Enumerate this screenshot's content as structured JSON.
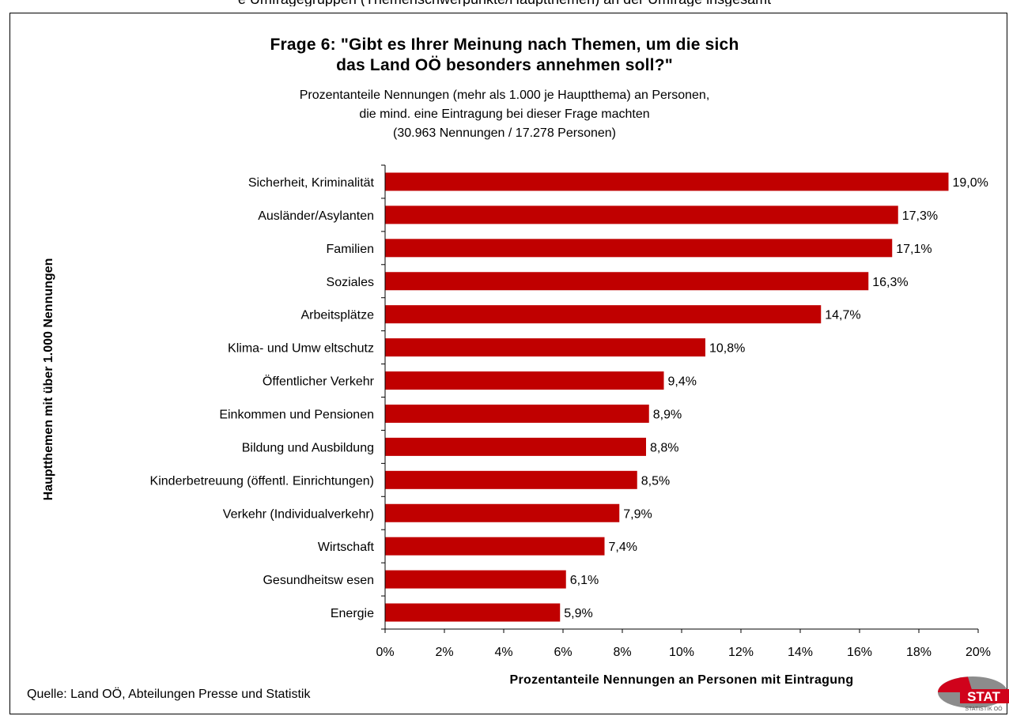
{
  "header_partial": "e Umfragegruppen (Themenschwerpunkte/Hauptthemen) an der Umfrage insgesamt",
  "chart_data": {
    "type": "bar",
    "orientation": "horizontal",
    "title_lines": [
      "Frage 6: \"Gibt es Ihrer Meinung nach Themen, um die sich",
      "das Land OÖ besonders annehmen soll?\""
    ],
    "subtitle_lines": [
      "Prozentanteile Nennungen (mehr als 1.000 je Hauptthema) an Personen,",
      "die mind. eine Eintragung bei dieser Frage machten",
      "(30.963 Nennungen / 17.278 Personen)"
    ],
    "categories": [
      "Sicherheit, Kriminalität",
      "Ausländer/Asylanten",
      "Familien",
      "Soziales",
      "Arbeitsplätze",
      "Klima- und Umw eltschutz",
      "Öffentlicher Verkehr",
      "Einkommen und Pensionen",
      "Bildung und Ausbildung",
      "Kinderbetreuung (öffentl. Einrichtungen)",
      "Verkehr (Individualverkehr)",
      "Wirtschaft",
      "Gesundheitsw esen",
      "Energie"
    ],
    "values": [
      19.0,
      17.3,
      17.1,
      16.3,
      14.7,
      10.8,
      9.4,
      8.9,
      8.8,
      8.5,
      7.9,
      7.4,
      6.1,
      5.9
    ],
    "value_labels": [
      "19,0%",
      "17,3%",
      "17,1%",
      "16,3%",
      "14,7%",
      "10,8%",
      "9,4%",
      "8,9%",
      "8,8%",
      "8,5%",
      "7,9%",
      "7,4%",
      "6,1%",
      "5,9%"
    ],
    "xticks": [
      0,
      2,
      4,
      6,
      8,
      10,
      12,
      14,
      16,
      18,
      20
    ],
    "xtick_labels": [
      "0%",
      "2%",
      "4%",
      "6%",
      "8%",
      "10%",
      "12%",
      "14%",
      "16%",
      "18%",
      "20%"
    ],
    "xlim": [
      0,
      20
    ],
    "xlabel": "Prozentanteile Nennungen an Personen mit Eintragung",
    "ylabel": "Hauptthemen mit über 1.000 Nennungen",
    "bar_color": "#C00000",
    "grid": false,
    "legend": "none"
  },
  "source": "Quelle: Land OÖ, Abteilungen Presse und Statistik",
  "logo": {
    "text": "STAT",
    "subtext": "STATISTIK OÖ"
  }
}
